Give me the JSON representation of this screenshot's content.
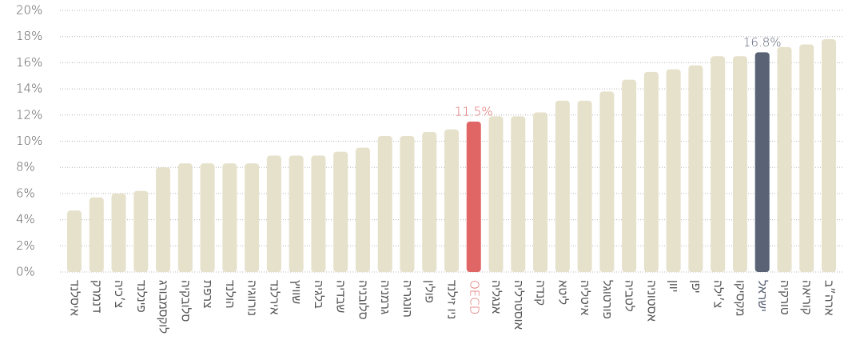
{
  "chart_data": {
    "type": "bar",
    "categories": [
      "איסלנד",
      "דנמרק",
      "צ׳כיה",
      "פינלנד",
      "לוקסמבורג",
      "סלובקיה",
      "צרפת",
      "הולנד",
      "נורווגיה",
      "אירלנד",
      "שוויץ",
      "בלגיה",
      "שבדיה",
      "סלובניה",
      "גרמניה",
      "הונגריה",
      "פולין",
      "ניו זילנד",
      "OECD",
      "אנגליה",
      "אוסטרליה",
      "קנדה",
      "ליטא",
      "איטליה",
      "פורטוגל",
      "לטביה",
      "אסטוניה",
      "יוון",
      "יפן",
      "צ׳ילה",
      "מקסיקו",
      "ישראל",
      "טורקיה",
      "קוריאה",
      "ארה״ב"
    ],
    "values": [
      4.7,
      5.7,
      6.0,
      6.2,
      8.0,
      8.3,
      8.3,
      8.3,
      8.3,
      8.9,
      8.9,
      8.9,
      9.2,
      9.5,
      10.4,
      10.4,
      10.7,
      10.9,
      11.5,
      11.9,
      11.9,
      12.2,
      13.1,
      13.1,
      13.8,
      14.7,
      15.3,
      15.5,
      15.8,
      16.5,
      16.5,
      16.8,
      17.2,
      17.4,
      17.8
    ],
    "value_labels": [
      null,
      null,
      null,
      null,
      null,
      null,
      null,
      null,
      null,
      null,
      null,
      null,
      null,
      null,
      null,
      null,
      null,
      null,
      "11.5%",
      null,
      null,
      null,
      null,
      null,
      null,
      null,
      null,
      null,
      null,
      null,
      null,
      "16.8%",
      null,
      null,
      null
    ],
    "color": "#e6e1cb",
    "highlight_colors": {
      "18": "#e06666",
      "31": "#5a6275"
    },
    "ylim": [
      0,
      20
    ],
    "yticks": [
      {
        "value": 0,
        "label": "0%"
      },
      {
        "value": 2,
        "label": "2%"
      },
      {
        "value": 4,
        "label": "4%"
      },
      {
        "value": 6,
        "label": "6%"
      },
      {
        "value": 8,
        "label": "8%"
      },
      {
        "value": 10,
        "label": "10%"
      },
      {
        "value": 12,
        "label": "12%"
      },
      {
        "value": 14,
        "label": "14%"
      },
      {
        "value": 16,
        "label": "16%"
      },
      {
        "value": 18,
        "label": "18%"
      },
      {
        "value": 20,
        "label": "20%"
      }
    ],
    "grid": true
  }
}
